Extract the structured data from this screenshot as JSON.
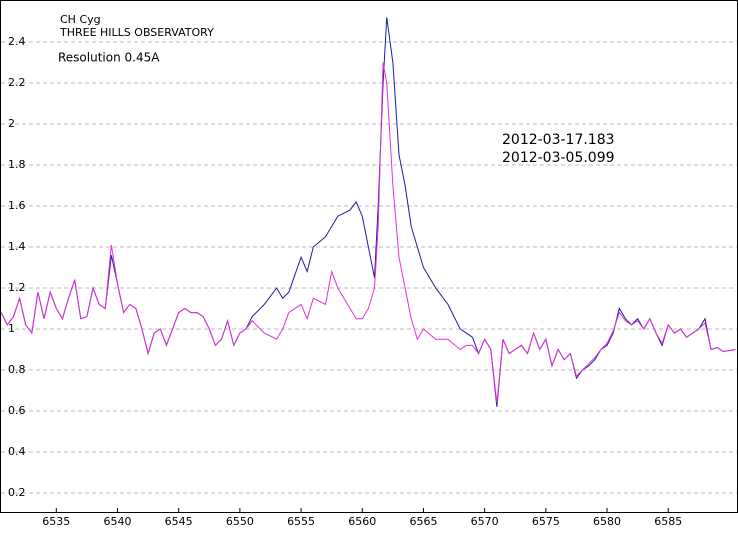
{
  "chart_data": {
    "type": "line",
    "annotations": [
      "CH Cyg",
      "THREE HILLS OBSERVATORY",
      "Resolution 0.45A"
    ],
    "x": [
      6530.5,
      6531,
      6531.5,
      6532,
      6532.5,
      6533,
      6533.5,
      6534,
      6534.5,
      6535,
      6535.5,
      6536,
      6536.5,
      6537,
      6537.5,
      6538,
      6538.5,
      6539,
      6539.5,
      6540,
      6540.5,
      6541,
      6541.5,
      6542,
      6542.5,
      6543,
      6543.5,
      6544,
      6544.5,
      6545,
      6545.5,
      6546,
      6546.5,
      6547,
      6547.5,
      6548,
      6548.5,
      6549,
      6549.5,
      6550,
      6550.5,
      6551,
      6552,
      6553,
      6553.5,
      6554,
      6555,
      6555.5,
      6556,
      6557,
      6557.5,
      6558,
      6559,
      6559.5,
      6560,
      6560.5,
      6561,
      6561.3,
      6561.7,
      6562,
      6562.5,
      6563,
      6563.5,
      6564,
      6564.5,
      6565,
      6566,
      6567,
      6568,
      6568.5,
      6569,
      6569.5,
      6570,
      6570.5,
      6571,
      6571.5,
      6572,
      6572.5,
      6573,
      6573.5,
      6574,
      6574.5,
      6575,
      6575.5,
      6576,
      6576.5,
      6577,
      6577.5,
      6578,
      6578.5,
      6579,
      6579.5,
      6580,
      6580.5,
      6581,
      6581.5,
      6582,
      6582.5,
      6583,
      6583.5,
      6584,
      6584.5,
      6585,
      6585.5,
      6586,
      6586.5,
      6587,
      6587.5,
      6588,
      6588.5,
      6589,
      6589.5,
      6590.5
    ],
    "series": [
      {
        "name": "2012-03-17.183",
        "color": "#1c1ca0",
        "values": [
          1.08,
          1.02,
          1.06,
          1.15,
          1.02,
          0.98,
          1.18,
          1.05,
          1.18,
          1.1,
          1.05,
          1.15,
          1.24,
          1.05,
          1.06,
          1.2,
          1.12,
          1.1,
          1.36,
          1.22,
          1.08,
          1.12,
          1.1,
          1.0,
          0.88,
          0.98,
          1.0,
          0.92,
          1.0,
          1.08,
          1.1,
          1.08,
          1.08,
          1.06,
          1.0,
          0.92,
          0.95,
          1.04,
          0.92,
          0.98,
          1.0,
          1.06,
          1.12,
          1.2,
          1.15,
          1.18,
          1.35,
          1.28,
          1.4,
          1.45,
          1.5,
          1.55,
          1.58,
          1.62,
          1.55,
          1.4,
          1.25,
          1.6,
          2.2,
          2.52,
          2.3,
          1.85,
          1.7,
          1.5,
          1.4,
          1.3,
          1.2,
          1.12,
          1.0,
          0.98,
          0.96,
          0.88,
          0.95,
          0.9,
          0.62,
          0.95,
          0.88,
          0.9,
          0.92,
          0.88,
          0.98,
          0.9,
          0.95,
          0.82,
          0.9,
          0.85,
          0.88,
          0.76,
          0.8,
          0.82,
          0.85,
          0.9,
          0.92,
          0.98,
          1.1,
          1.05,
          1.02,
          1.05,
          1.0,
          1.05,
          0.98,
          0.92,
          1.02,
          0.98,
          1.0,
          0.96,
          0.98,
          1.0,
          1.05,
          0.9,
          0.91,
          0.89,
          0.9
        ]
      },
      {
        "name": "2012-03-05.099",
        "color": "#e030d8",
        "values": [
          1.08,
          1.02,
          1.06,
          1.15,
          1.02,
          0.98,
          1.18,
          1.05,
          1.18,
          1.1,
          1.05,
          1.15,
          1.24,
          1.05,
          1.06,
          1.2,
          1.12,
          1.1,
          1.41,
          1.22,
          1.08,
          1.12,
          1.1,
          1.0,
          0.88,
          0.98,
          1.0,
          0.92,
          1.0,
          1.08,
          1.1,
          1.08,
          1.08,
          1.06,
          1.0,
          0.92,
          0.95,
          1.04,
          0.92,
          0.98,
          1.0,
          1.04,
          0.98,
          0.95,
          1.0,
          1.08,
          1.12,
          1.05,
          1.15,
          1.12,
          1.28,
          1.2,
          1.1,
          1.05,
          1.05,
          1.1,
          1.2,
          1.5,
          2.3,
          2.2,
          1.7,
          1.35,
          1.2,
          1.05,
          0.95,
          1.0,
          0.95,
          0.95,
          0.9,
          0.92,
          0.92,
          0.88,
          0.95,
          0.9,
          0.64,
          0.95,
          0.88,
          0.9,
          0.92,
          0.88,
          0.98,
          0.9,
          0.95,
          0.82,
          0.9,
          0.85,
          0.88,
          0.77,
          0.8,
          0.83,
          0.86,
          0.9,
          0.93,
          0.99,
          1.08,
          1.04,
          1.02,
          1.04,
          1.0,
          1.05,
          0.98,
          0.93,
          1.02,
          0.98,
          1.0,
          0.96,
          0.98,
          1.0,
          1.03,
          0.9,
          0.91,
          0.89,
          0.9
        ]
      }
    ],
    "xlim": [
      6530.4,
      6590.7
    ],
    "ylim": [
      0.107,
      2.605
    ],
    "xticks": [
      6535,
      6540,
      6545,
      6550,
      6555,
      6560,
      6565,
      6570,
      6575,
      6580,
      6585
    ],
    "yticks": [
      0.2,
      0.4,
      0.6,
      0.8,
      1,
      1.2,
      1.4,
      1.6,
      1.8,
      2,
      2.2,
      2.4
    ],
    "grid": true
  }
}
